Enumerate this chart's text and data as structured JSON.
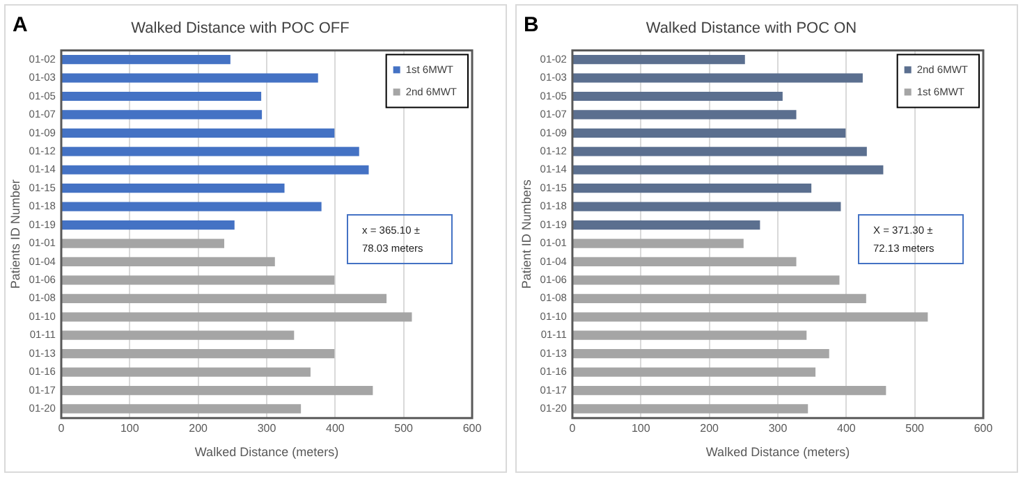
{
  "chart_data": [
    {
      "type": "bar",
      "orientation": "horizontal",
      "title": "Walked Distance with POC OFF",
      "xlabel": "Walked Distance (meters)",
      "ylabel": "Patients ID Number",
      "categories": [
        "01-02",
        "01-03",
        "01-05",
        "01-07",
        "01-09",
        "01-12",
        "01-14",
        "01-15",
        "01-18",
        "01-19",
        "01-01",
        "01-04",
        "01-06",
        "01-08",
        "01-10",
        "01-11",
        "01-13",
        "01-16",
        "01-17",
        "01-20"
      ],
      "series": [
        {
          "name": "1st 6MWT",
          "color": "#4472c4",
          "values": [
            247,
            375,
            292,
            293,
            399,
            435,
            449,
            326,
            380,
            253,
            null,
            null,
            null,
            null,
            null,
            null,
            null,
            null,
            null,
            null
          ]
        },
        {
          "name": "2nd 6MWT",
          "color": "#a5a5a5",
          "values": [
            null,
            null,
            null,
            null,
            null,
            null,
            null,
            null,
            null,
            null,
            238,
            312,
            399,
            475,
            512,
            340,
            399,
            364,
            455,
            350
          ]
        }
      ],
      "xlim": [
        0,
        600
      ],
      "xticks": [
        0,
        100,
        200,
        300,
        400,
        500,
        600
      ],
      "grid": "x",
      "legend": "top right",
      "annotations": [
        "A",
        "x = 365.10 ± 78.03 meters"
      ]
    },
    {
      "type": "bar",
      "orientation": "horizontal",
      "title": "Walked Distance with POC ON",
      "xlabel": "Walked Distance (meters)",
      "ylabel": "Patient ID Numbers",
      "categories": [
        "01-02",
        "01-03",
        "01-05",
        "01-07",
        "01-09",
        "01-12",
        "01-14",
        "01-15",
        "01-18",
        "01-19",
        "01-01",
        "01-04",
        "01-06",
        "01-08",
        "01-10",
        "01-11",
        "01-13",
        "01-16",
        "01-17",
        "01-20"
      ],
      "series": [
        {
          "name": "2nd 6MWT",
          "color": "#5b6f8f",
          "values": [
            252,
            424,
            307,
            327,
            399,
            430,
            454,
            349,
            392,
            274,
            null,
            null,
            null,
            null,
            null,
            null,
            null,
            null,
            null,
            null
          ]
        },
        {
          "name": "1st 6MWT",
          "color": "#a5a5a5",
          "values": [
            null,
            null,
            null,
            null,
            null,
            null,
            null,
            null,
            null,
            null,
            250,
            327,
            390,
            429,
            519,
            342,
            375,
            355,
            458,
            344
          ]
        }
      ],
      "xlim": [
        0,
        600
      ],
      "xticks": [
        0,
        100,
        200,
        300,
        400,
        500,
        600
      ],
      "grid": "x",
      "legend": "top right",
      "annotations": [
        "B",
        "X = 371.30 ± 72.13 meters"
      ]
    }
  ]
}
